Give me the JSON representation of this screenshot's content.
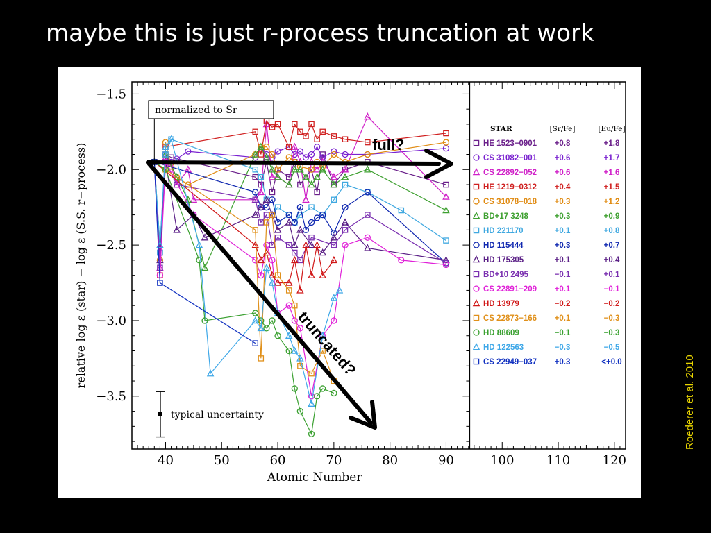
{
  "slide": {
    "title": "maybe this is just r-process truncation at work",
    "credit": "Roederer et al. 2010",
    "annotation_full": "full?",
    "annotation_truncated": "truncated?"
  },
  "chart_data": {
    "type": "line",
    "xlabel": "Atomic Number",
    "ylabel": "relative log ε (star) − log ε (S.S. r−process)",
    "xlim": [
      34,
      122
    ],
    "ylim": [
      -3.85,
      -1.42
    ],
    "plot_xmax": 94.2,
    "x_ticks": [
      40,
      50,
      60,
      70,
      80,
      90,
      100,
      110,
      120
    ],
    "y_ticks": [
      -1.5,
      -2.0,
      -2.5,
      -3.0,
      -3.5
    ],
    "y_tick_labels": [
      "−1.5",
      "−2.0",
      "−2.5",
      "−3.0",
      "−3.5"
    ],
    "normalization_note": "normalized to Sr",
    "normalization_element_z": 38,
    "uncertainty_label": "typical uncertainty",
    "uncertainty_dex": 0.15,
    "legend": {
      "headers": [
        "STAR",
        "[Sr/Fe]",
        "[Eu/Fe]"
      ],
      "placement": "right panel"
    },
    "colors": {
      "frame": "#000000",
      "arrow": "#000000"
    },
    "series": [
      {
        "name": "HE 1523−0901",
        "sr_fe": "+0.8",
        "eu_fe": "+1.8",
        "color": "#6a1f8a",
        "marker": "square",
        "x": [
          38,
          39,
          40,
          41,
          56,
          57,
          58,
          59,
          60,
          62,
          63,
          64,
          66,
          67,
          68,
          70,
          72,
          76,
          90
        ],
        "y": [
          -1.95,
          -2.55,
          -1.9,
          -1.92,
          -2.05,
          -2.1,
          -1.95,
          -2.15,
          -2.0,
          -2.05,
          -1.95,
          -2.1,
          -2.0,
          -2.15,
          -1.9,
          -2.1,
          -2.0,
          -1.95,
          -2.1
        ]
      },
      {
        "name": "CS 31082−001",
        "sr_fe": "+0.6",
        "eu_fe": "+1.7",
        "color": "#7a22d0",
        "marker": "circle",
        "x": [
          38,
          39,
          40,
          41,
          42,
          44,
          56,
          57,
          58,
          59,
          60,
          62,
          63,
          64,
          65,
          66,
          67,
          68,
          70,
          72,
          76,
          90
        ],
        "y": [
          -1.95,
          -2.6,
          -1.9,
          -1.95,
          -1.93,
          -1.88,
          -1.92,
          -1.85,
          -1.9,
          -1.92,
          -1.88,
          -1.85,
          -1.9,
          -1.88,
          -1.92,
          -1.9,
          -1.85,
          -1.92,
          -1.88,
          -1.9,
          -1.9,
          -1.86
        ]
      },
      {
        "name": "CS 22892−052",
        "sr_fe": "+0.6",
        "eu_fe": "+1.6",
        "color": "#d020c8",
        "marker": "triangle",
        "x": [
          38,
          39,
          40,
          41,
          42,
          44,
          45,
          56,
          57,
          58,
          59,
          60,
          62,
          63,
          64,
          65,
          66,
          67,
          68,
          70,
          72,
          76,
          90
        ],
        "y": [
          -1.95,
          -2.65,
          -1.92,
          -1.98,
          -2.1,
          -2.0,
          -2.2,
          -2.2,
          -2.15,
          -1.7,
          -2.05,
          -2.05,
          -2.1,
          -1.85,
          -1.95,
          -2.2,
          -1.95,
          -2.0,
          -1.95,
          -2.05,
          -2.0,
          -1.65,
          -2.18
        ]
      },
      {
        "name": "HE 1219−0312",
        "sr_fe": "+0.4",
        "eu_fe": "+1.5",
        "color": "#d02020",
        "marker": "square",
        "x": [
          38,
          39,
          40,
          56,
          57,
          58,
          59,
          60,
          62,
          63,
          64,
          65,
          66,
          67,
          68,
          70,
          72,
          76,
          90
        ],
        "y": [
          -1.95,
          -2.7,
          -1.85,
          -1.75,
          -1.9,
          -1.68,
          -1.72,
          -1.7,
          -1.85,
          -1.7,
          -1.75,
          -1.78,
          -1.7,
          -1.8,
          -1.75,
          -1.78,
          -1.8,
          -1.82,
          -1.76
        ]
      },
      {
        "name": "CS 31078−018",
        "sr_fe": "+0.3",
        "eu_fe": "+1.2",
        "color": "#e08a10",
        "marker": "circle",
        "x": [
          38,
          39,
          40,
          41,
          42,
          44,
          56,
          57,
          58,
          59,
          60,
          62,
          63,
          64,
          66,
          67,
          68,
          70,
          72,
          76,
          90
        ],
        "y": [
          -1.95,
          -2.6,
          -1.82,
          -1.98,
          -2.05,
          -2.1,
          -1.9,
          -1.85,
          -1.85,
          -1.9,
          -2.0,
          -1.92,
          -1.95,
          -1.98,
          -2.0,
          -1.95,
          -1.98,
          -1.9,
          -1.95,
          -1.9,
          -1.82
        ]
      },
      {
        "name": "BD+17 3248",
        "sr_fe": "+0.3",
        "eu_fe": "+0.9",
        "color": "#3ea030",
        "marker": "triangle",
        "x": [
          38,
          39,
          40,
          42,
          44,
          47,
          56,
          57,
          58,
          59,
          60,
          62,
          63,
          64,
          65,
          66,
          67,
          68,
          70,
          72,
          76,
          90
        ],
        "y": [
          -1.95,
          -2.5,
          -1.9,
          -2.05,
          -2.2,
          -2.65,
          -1.9,
          -1.85,
          -1.92,
          -2.0,
          -2.05,
          -2.1,
          -2.0,
          -2.0,
          -2.05,
          -2.1,
          -2.05,
          -2.0,
          -2.1,
          -2.05,
          -2.0,
          -2.27
        ]
      },
      {
        "name": "HD 221170",
        "sr_fe": "+0.1",
        "eu_fe": "+0.8",
        "color": "#3fa8e0",
        "marker": "square",
        "x": [
          38,
          39,
          40,
          41,
          56,
          57,
          58,
          59,
          60,
          62,
          63,
          64,
          66,
          68,
          70,
          72,
          76,
          82,
          90
        ],
        "y": [
          -1.95,
          -2.55,
          -1.9,
          -1.8,
          -2.0,
          -2.05,
          -2.2,
          -2.3,
          -2.25,
          -2.3,
          -2.35,
          -2.3,
          -2.25,
          -2.3,
          -2.2,
          -2.1,
          -2.15,
          -2.27,
          -2.47
        ]
      },
      {
        "name": "HD 115444",
        "sr_fe": "+0.3",
        "eu_fe": "+0.7",
        "color": "#1028b0",
        "marker": "circle",
        "x": [
          38,
          56,
          57,
          58,
          59,
          60,
          62,
          63,
          64,
          65,
          66,
          67,
          68,
          70,
          72,
          76,
          90
        ],
        "y": [
          -1.95,
          -2.15,
          -2.25,
          -2.25,
          -2.2,
          -2.35,
          -2.3,
          -2.35,
          -2.25,
          -2.4,
          -2.35,
          -2.32,
          -2.3,
          -2.42,
          -2.25,
          -2.15,
          -2.62
        ]
      },
      {
        "name": "HD 175305",
        "sr_fe": "+0.1",
        "eu_fe": "+0.4",
        "color": "#5a1f86",
        "marker": "triangle",
        "x": [
          38,
          39,
          40,
          42,
          45,
          47,
          56,
          57,
          58,
          59,
          60,
          62,
          63,
          64,
          66,
          68,
          70,
          72,
          76,
          90
        ],
        "y": [
          -1.95,
          -2.6,
          -1.95,
          -2.4,
          -2.3,
          -2.45,
          -2.3,
          -2.25,
          -2.2,
          -2.3,
          -2.4,
          -2.35,
          -2.5,
          -2.4,
          -2.5,
          -2.55,
          -2.45,
          -2.35,
          -2.52,
          -2.6
        ]
      },
      {
        "name": "BD+10 2495",
        "sr_fe": "−0.1",
        "eu_fe": "+0.1",
        "color": "#7a2fb0",
        "marker": "square",
        "x": [
          38,
          39,
          40,
          42,
          56,
          57,
          58,
          59,
          60,
          62,
          63,
          64,
          66,
          70,
          72,
          76,
          90
        ],
        "y": [
          -1.95,
          -2.65,
          -1.95,
          -2.1,
          -2.2,
          -2.35,
          -2.3,
          -2.5,
          -2.45,
          -2.5,
          -2.55,
          -2.6,
          -2.45,
          -2.5,
          -2.4,
          -2.3,
          -2.62
        ]
      },
      {
        "name": "CS 22891−209",
        "sr_fe": "+0.1",
        "eu_fe": "−0.1",
        "color": "#e020d8",
        "marker": "circle",
        "x": [
          38,
          39,
          40,
          45,
          56,
          57,
          58,
          59,
          60,
          62,
          63,
          64,
          66,
          68,
          70,
          72,
          76,
          82,
          90
        ],
        "y": [
          -1.95,
          -2.7,
          -1.95,
          -2.3,
          -2.6,
          -2.7,
          -2.5,
          -2.6,
          -2.95,
          -2.9,
          -3.0,
          -3.05,
          -3.5,
          -3.1,
          -3.0,
          -2.5,
          -2.45,
          -2.6,
          -2.63
        ]
      },
      {
        "name": "HD 13979",
        "sr_fe": "−0.2",
        "eu_fe": "−0.2",
        "color": "#d01818",
        "marker": "triangle",
        "x": [
          38,
          56,
          57,
          58,
          59,
          60,
          62,
          63,
          64,
          65,
          66,
          67,
          68,
          70
        ],
        "y": [
          -1.95,
          -2.5,
          -2.6,
          -2.55,
          -2.7,
          -2.75,
          -2.75,
          -2.6,
          -2.8,
          -2.5,
          -2.7,
          -2.5,
          -2.7,
          -2.6
        ]
      },
      {
        "name": "CS 22873−166",
        "sr_fe": "+0.1",
        "eu_fe": "−0.3",
        "color": "#e0901a",
        "marker": "square",
        "x": [
          38,
          40,
          56,
          57,
          58,
          59,
          60,
          62,
          63,
          64,
          66,
          68,
          70
        ],
        "y": [
          -1.95,
          -2.0,
          -2.4,
          -3.25,
          -2.35,
          -2.3,
          -2.7,
          -2.8,
          -2.9,
          -3.3,
          -3.35,
          -3.2,
          -3.4
        ]
      },
      {
        "name": "HD 88609",
        "sr_fe": "−0.1",
        "eu_fe": "−0.3",
        "color": "#3aa030",
        "marker": "circle",
        "x": [
          38,
          40,
          46,
          47,
          56,
          57,
          58,
          59,
          60,
          62,
          63,
          64,
          66,
          67,
          68,
          70
        ],
        "y": [
          -1.95,
          -2.0,
          -2.6,
          -3.0,
          -2.95,
          -3.0,
          -3.05,
          -3.0,
          -3.1,
          -3.2,
          -3.45,
          -3.6,
          -3.75,
          -3.5,
          -3.45,
          -3.48
        ]
      },
      {
        "name": "HD 122563",
        "sr_fe": "−0.3",
        "eu_fe": "−0.5",
        "color": "#3fa8e8",
        "marker": "triangle",
        "x": [
          38,
          39,
          40,
          41,
          46,
          48,
          56,
          57,
          58,
          59,
          60,
          62,
          63,
          64,
          66,
          68,
          70,
          71
        ],
        "y": [
          -1.95,
          -2.5,
          -1.85,
          -1.8,
          -2.5,
          -3.35,
          -3.0,
          -3.05,
          -2.65,
          -2.75,
          -2.95,
          -3.1,
          -3.2,
          -3.25,
          -3.55,
          -3.1,
          -2.85,
          -2.8
        ]
      },
      {
        "name": "CS 22949−037",
        "sr_fe": "+0.3",
        "eu_fe": "<+0.0",
        "color": "#1030c0",
        "marker": "square",
        "x": [
          38,
          39,
          56
        ],
        "y": [
          -1.95,
          -2.75,
          -3.15
        ]
      }
    ]
  }
}
